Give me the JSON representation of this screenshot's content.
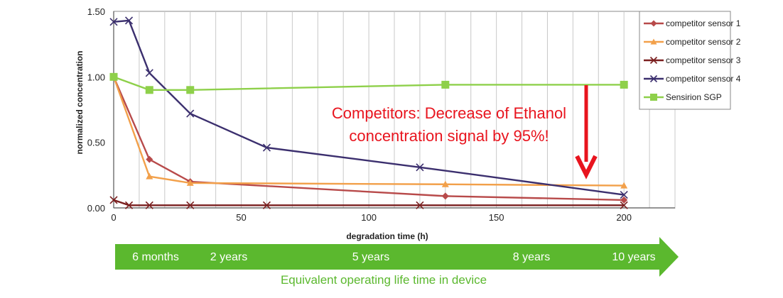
{
  "chart_data": {
    "type": "line",
    "xlabel": "degradation time (h)",
    "ylabel": "normalized concentration",
    "xlim": [
      0,
      220
    ],
    "ylim": [
      0,
      1.5
    ],
    "x_ticks": [
      "0",
      "50",
      "100",
      "150",
      "200"
    ],
    "y_ticks": [
      "0.00",
      "0.50",
      "1.00",
      "1.50"
    ],
    "grid": "vertical",
    "legend_position": "right",
    "series": [
      {
        "name": "competitor sensor 1",
        "color": "#b84a4a",
        "marker": "diamond",
        "points": [
          [
            0,
            1.0
          ],
          [
            14,
            0.37
          ],
          [
            30,
            0.2
          ],
          [
            130,
            0.09
          ],
          [
            200,
            0.06
          ]
        ]
      },
      {
        "name": "competitor sensor 2",
        "color": "#f2a04a",
        "marker": "triangle",
        "points": [
          [
            0,
            1.0
          ],
          [
            14,
            0.24
          ],
          [
            30,
            0.19
          ],
          [
            130,
            0.18
          ],
          [
            200,
            0.17
          ]
        ]
      },
      {
        "name": "competitor sensor 3",
        "color": "#7a1f1f",
        "marker": "x",
        "points": [
          [
            0,
            0.06
          ],
          [
            6,
            0.02
          ],
          [
            14,
            0.02
          ],
          [
            30,
            0.02
          ],
          [
            60,
            0.02
          ],
          [
            120,
            0.02
          ],
          [
            200,
            0.02
          ]
        ]
      },
      {
        "name": "competitor sensor 4",
        "color": "#3b2f6e",
        "marker": "x",
        "points": [
          [
            0,
            1.42
          ],
          [
            6,
            1.43
          ],
          [
            14,
            1.03
          ],
          [
            30,
            0.72
          ],
          [
            60,
            0.46
          ],
          [
            120,
            0.31
          ],
          [
            200,
            0.1
          ]
        ]
      },
      {
        "name": "Sensirion SGP",
        "color": "#8ed04a",
        "marker": "square",
        "points": [
          [
            0,
            1.0
          ],
          [
            14,
            0.9
          ],
          [
            30,
            0.9
          ],
          [
            130,
            0.94
          ],
          [
            200,
            0.94
          ]
        ]
      }
    ],
    "annotation": {
      "lines": [
        "Competitors: Decrease of Ethanol",
        "concentration signal by 95%!"
      ],
      "color": "#e8141e"
    }
  },
  "lifetime_banner": {
    "color": "#5bb82e",
    "labels": [
      "6 months",
      "2 years",
      "5 years",
      "8 years",
      "10 years"
    ],
    "caption": "Equivalent operating life time in device"
  }
}
